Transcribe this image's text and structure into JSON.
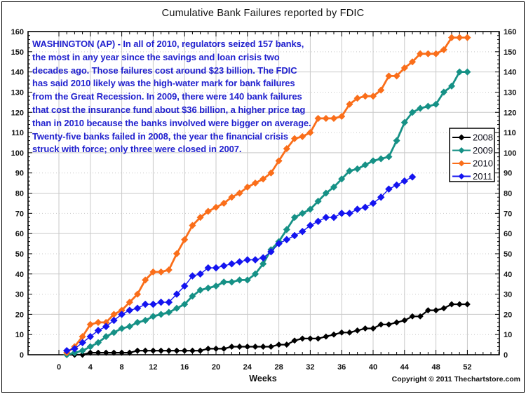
{
  "title": "Cumulative Bank Failures reported by FDIC",
  "annotation": "WASHINGTON (AP) - In all of 2010, regulators seized 157 banks, the most in any year since the savings and loan crisis two decades ago. Those failures cost around $23 billion. The FDIC has said 2010 likely was the high-water mark for bank failures from the Great Recession. In 2009, there were 140 bank failures that cost the insurance fund about $36 billion, a higher price tag than in 2010 because the banks involved were bigger on average. Twenty-five banks failed in 2008, the year the financial crisis struck with force; only three were closed in 2007.",
  "xaxis_title": "Weeks",
  "copyright": "Copyright © 2011 Thechartstore.com",
  "colors": {
    "annotation_text": "#2121ce",
    "grid": "#c9c9c9",
    "axis": "#000000",
    "series_2008": "#000000",
    "series_2009": "#169186",
    "series_2010": "#fa6e1a",
    "series_2011": "#1414f0"
  },
  "chart_data": {
    "type": "line",
    "title": "Cumulative Bank Failures reported by FDIC",
    "xlabel": "Weeks",
    "ylabel": "",
    "xlim": [
      0,
      56
    ],
    "ylim": [
      0,
      160
    ],
    "x_ticks": [
      0,
      4,
      8,
      12,
      16,
      20,
      24,
      28,
      32,
      36,
      40,
      44,
      48,
      52
    ],
    "y_ticks": [
      0,
      10,
      20,
      30,
      40,
      50,
      60,
      70,
      80,
      90,
      100,
      110,
      120,
      130,
      140,
      150,
      160
    ],
    "grid": true,
    "legend_position": "right",
    "x_start_week": 1,
    "series": [
      {
        "name": "2008",
        "color": "#000000",
        "values": [
          0,
          0,
          0,
          1,
          1,
          1,
          1,
          1,
          1,
          2,
          2,
          2,
          2,
          2,
          2,
          2,
          2,
          2,
          3,
          3,
          3,
          4,
          4,
          4,
          4,
          4,
          4,
          5,
          5,
          7,
          8,
          8,
          8,
          9,
          10,
          11,
          11,
          12,
          13,
          13,
          15,
          15,
          16,
          17,
          19,
          19,
          22,
          22,
          23,
          25,
          25,
          25
        ]
      },
      {
        "name": "2009",
        "color": "#169186",
        "values": [
          0,
          1,
          2,
          4,
          6,
          9,
          11,
          13,
          14,
          16,
          17,
          19,
          20,
          21,
          23,
          25,
          29,
          32,
          33,
          34,
          36,
          36,
          37,
          37,
          40,
          45,
          52,
          56,
          62,
          68,
          70,
          72,
          76,
          80,
          83,
          87,
          91,
          92,
          94,
          96,
          97,
          98,
          106,
          115,
          120,
          122,
          123,
          124,
          130,
          133,
          140,
          140
        ]
      },
      {
        "name": "2010",
        "color": "#fa6e1a",
        "values": [
          1,
          4,
          9,
          15,
          16,
          16,
          20,
          22,
          26,
          30,
          37,
          41,
          41,
          42,
          50,
          57,
          64,
          68,
          71,
          73,
          75,
          78,
          80,
          83,
          85,
          87,
          90,
          96,
          102,
          107,
          108,
          110,
          117,
          117,
          117,
          118,
          124,
          127,
          128,
          128,
          131,
          138,
          138,
          142,
          145,
          149,
          149,
          149,
          151,
          157,
          157,
          157
        ]
      },
      {
        "name": "2011",
        "color": "#1414f0",
        "values": [
          2,
          3,
          6,
          9,
          12,
          14,
          17,
          20,
          22,
          23,
          25,
          25,
          26,
          26,
          30,
          34,
          39,
          40,
          43,
          43,
          44,
          45,
          46,
          47,
          47,
          48,
          51,
          55,
          57,
          59,
          61,
          64,
          66,
          68,
          68,
          70,
          70,
          72,
          73,
          75,
          78,
          82,
          84,
          86,
          88
        ]
      }
    ]
  }
}
